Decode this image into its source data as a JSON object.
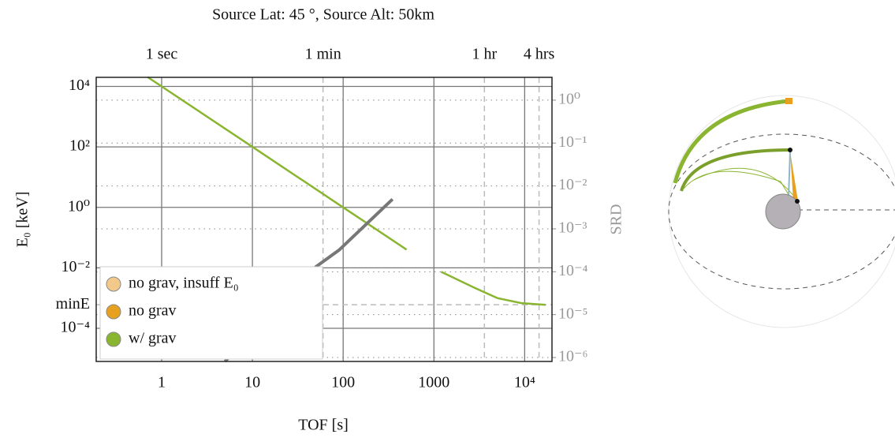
{
  "chart_data": {
    "type": "line",
    "title": "Source Lat: 45 °, Source Alt: 50km",
    "xlabel": "TOF [s]",
    "ylabel": "E₀ [keV]",
    "y2label": "SRD",
    "xscale": "log",
    "yscale": "log",
    "y2scale": "log",
    "xlim": [
      0.19,
      20000
    ],
    "ylim": [
      8e-06,
      20000
    ],
    "y2lim": [
      8.1e-07,
      3.4
    ],
    "xticks": [
      1,
      10,
      100,
      1000,
      {
        "value": 10000,
        "label": "10⁴"
      }
    ],
    "x2ticks": [
      {
        "value": 1,
        "label": "1 sec"
      },
      {
        "value": 60,
        "label": "1 min"
      },
      {
        "value": 3600,
        "label": "1 hr"
      },
      {
        "value": 14400,
        "label": "4 hrs"
      }
    ],
    "yticks": [
      {
        "value": 10000,
        "label": "10⁴"
      },
      {
        "value": 100,
        "label": "10²"
      },
      {
        "value": 1,
        "label": "10⁰"
      },
      {
        "value": 0.01,
        "label": "10⁻²"
      },
      {
        "value": 0.0001,
        "label": "10⁻⁴"
      }
    ],
    "y2ticks": [
      {
        "value": 1,
        "label": "10⁰"
      },
      {
        "value": 0.1,
        "label": "10⁻¹"
      },
      {
        "value": 0.01,
        "label": "10⁻²"
      },
      {
        "value": 0.001,
        "label": "10⁻³"
      },
      {
        "value": 0.0001,
        "label": "10⁻⁴"
      },
      {
        "value": 1e-05,
        "label": "10⁻⁵"
      },
      {
        "value": 1e-06,
        "label": "10⁻⁶"
      }
    ],
    "min_energy": {
      "value": 0.0006,
      "label": "minE"
    },
    "grid": true,
    "series": [
      {
        "color": "#8ab530",
        "x": [
          0.7,
          1,
          10,
          100,
          500
        ],
        "values": [
          20400,
          10000,
          100,
          1,
          0.04
        ]
      },
      {
        "color": "#8ab530",
        "x": [
          1200,
          2800,
          5000,
          9200,
          17000
        ],
        "values": [
          0.0074,
          0.0022,
          0.001,
          0.00068,
          0.0006
        ]
      },
      {
        "color": "#777777",
        "axis": "y2",
        "x": [
          5,
          50,
          90,
          350
        ],
        "values": [
          8.1e-07,
          0.00013,
          0.00032,
          0.0049
        ]
      }
    ],
    "legend": [
      {
        "name": "no grav, insuff E₀",
        "color": "#f2c98a"
      },
      {
        "name": "no grav",
        "color": "#e8a020"
      },
      {
        "name": "w/ grav",
        "color": "#8ab530"
      }
    ],
    "legend_position": "lower left"
  }
}
